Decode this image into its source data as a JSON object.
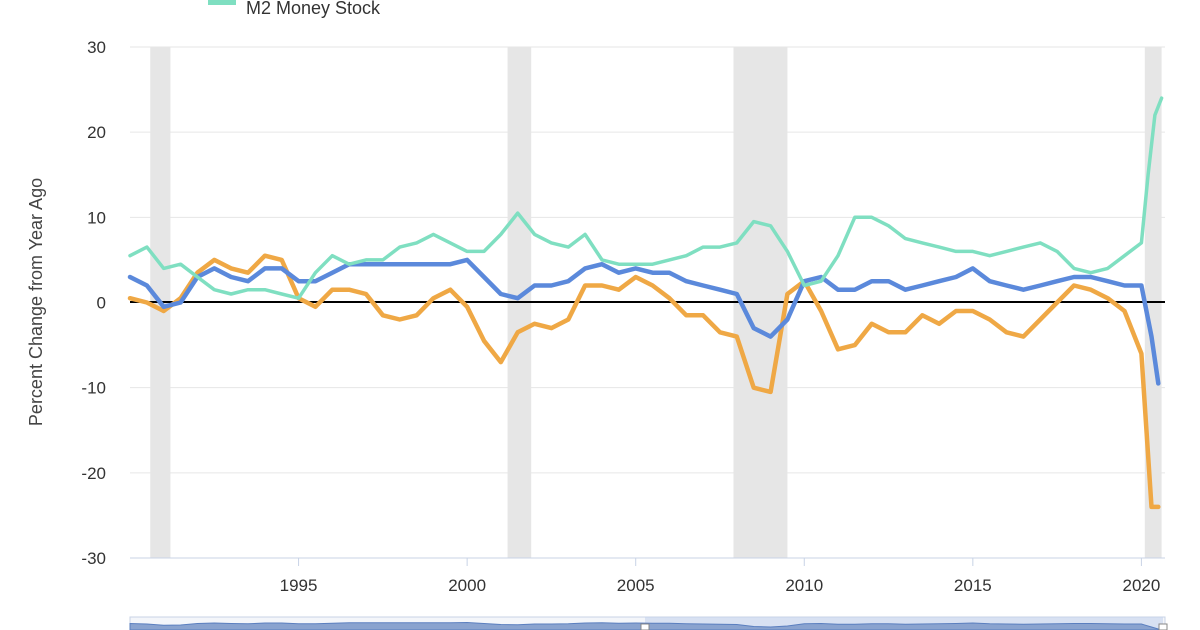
{
  "chart_data": {
    "type": "line",
    "ylabel": "Percent Change from Year Ago",
    "xlim": [
      1990.0,
      2020.7
    ],
    "ylim": [
      -30,
      30
    ],
    "y_ticks": [
      "30",
      "20",
      "10",
      "0",
      "-10",
      "-20",
      "-30"
    ],
    "x_ticks": [
      "1995",
      "2000",
      "2005",
      "2010",
      "2015",
      "2020"
    ],
    "grid": "horizontal",
    "zero_line": true,
    "legend": [
      {
        "name": "M2 Money Stock",
        "color": "#7fdfc1"
      }
    ],
    "recessions": [
      [
        1990.6,
        1991.2
      ],
      [
        2001.2,
        2001.9
      ],
      [
        2007.9,
        2009.5
      ],
      [
        2020.1,
        2020.6
      ]
    ],
    "series": [
      {
        "name": "",
        "color": "#efa845",
        "x": [
          1990.0,
          1990.5,
          1991.0,
          1991.5,
          1992.0,
          1992.5,
          1993.0,
          1993.5,
          1994.0,
          1994.5,
          1995.0,
          1995.5,
          1996.0,
          1996.5,
          1997.0,
          1997.5,
          1998.0,
          1998.5,
          1999.0,
          1999.5,
          2000.0,
          2000.5,
          2001.0,
          2001.5,
          2002.0,
          2002.5,
          2003.0,
          2003.5,
          2004.0,
          2004.5,
          2005.0,
          2005.5,
          2006.0,
          2006.5,
          2007.0,
          2007.5,
          2008.0,
          2008.5,
          2009.0,
          2009.5,
          2010.0,
          2010.5,
          2011.0,
          2011.5,
          2012.0,
          2012.5,
          2013.0,
          2013.5,
          2014.0,
          2014.5,
          2015.0,
          2015.5,
          2016.0,
          2016.5,
          2017.0,
          2017.5,
          2018.0,
          2018.5,
          2019.0,
          2019.5,
          2020.0,
          2020.3,
          2020.5
        ],
        "values": [
          0.5,
          0.0,
          -1.0,
          0.5,
          3.5,
          5.0,
          4.0,
          3.5,
          5.5,
          5.0,
          0.5,
          -0.5,
          1.5,
          1.5,
          1.0,
          -1.5,
          -2.0,
          -1.5,
          0.5,
          1.5,
          -0.5,
          -4.5,
          -7.0,
          -3.5,
          -2.5,
          -3.0,
          -2.0,
          2.0,
          2.0,
          1.5,
          3.0,
          2.0,
          0.5,
          -1.5,
          -1.5,
          -3.5,
          -4.0,
          -10.0,
          -10.5,
          1.0,
          2.5,
          -1.0,
          -5.5,
          -5.0,
          -2.5,
          -3.5,
          -3.5,
          -1.5,
          -2.5,
          -1.0,
          -1.0,
          -2.0,
          -3.5,
          -4.0,
          -2.0,
          0.0,
          2.0,
          1.5,
          0.5,
          -1.0,
          -6.0,
          -24.0,
          -24.0
        ]
      },
      {
        "name": "",
        "color": "#5b89db",
        "x": [
          1990.0,
          1990.5,
          1991.0,
          1991.5,
          1992.0,
          1992.5,
          1993.0,
          1993.5,
          1994.0,
          1994.5,
          1995.0,
          1995.5,
          1996.0,
          1996.5,
          1997.0,
          1997.5,
          1998.0,
          1998.5,
          1999.0,
          1999.5,
          2000.0,
          2000.5,
          2001.0,
          2001.5,
          2002.0,
          2002.5,
          2003.0,
          2003.5,
          2004.0,
          2004.5,
          2005.0,
          2005.5,
          2006.0,
          2006.5,
          2007.0,
          2007.5,
          2008.0,
          2008.5,
          2009.0,
          2009.5,
          2010.0,
          2010.5,
          2011.0,
          2011.5,
          2012.0,
          2012.5,
          2013.0,
          2013.5,
          2014.0,
          2014.5,
          2015.0,
          2015.5,
          2016.0,
          2016.5,
          2017.0,
          2017.5,
          2018.0,
          2018.5,
          2019.0,
          2019.5,
          2020.0,
          2020.3,
          2020.5
        ],
        "values": [
          3.0,
          2.0,
          -0.5,
          0.0,
          3.0,
          4.0,
          3.0,
          2.5,
          4.0,
          4.0,
          2.5,
          2.5,
          3.5,
          4.5,
          4.5,
          4.5,
          4.5,
          4.5,
          4.5,
          4.5,
          5.0,
          3.0,
          1.0,
          0.5,
          2.0,
          2.0,
          2.5,
          4.0,
          4.5,
          3.5,
          4.0,
          3.5,
          3.5,
          2.5,
          2.0,
          1.5,
          1.0,
          -3.0,
          -4.0,
          -2.0,
          2.5,
          3.0,
          1.5,
          1.5,
          2.5,
          2.5,
          1.5,
          2.0,
          2.5,
          3.0,
          4.0,
          2.5,
          2.0,
          1.5,
          2.0,
          2.5,
          3.0,
          3.0,
          2.5,
          2.0,
          2.0,
          -4.0,
          -9.5
        ]
      },
      {
        "name": "M2 Money Stock",
        "color": "#7fdfc1",
        "x": [
          1990.0,
          1990.5,
          1991.0,
          1991.5,
          1992.0,
          1992.5,
          1993.0,
          1993.5,
          1994.0,
          1994.5,
          1995.0,
          1995.5,
          1996.0,
          1996.5,
          1997.0,
          1997.5,
          1998.0,
          1998.5,
          1999.0,
          1999.5,
          2000.0,
          2000.5,
          2001.0,
          2001.5,
          2002.0,
          2002.5,
          2003.0,
          2003.5,
          2004.0,
          2004.5,
          2005.0,
          2005.5,
          2006.0,
          2006.5,
          2007.0,
          2007.5,
          2008.0,
          2008.5,
          2009.0,
          2009.5,
          2010.0,
          2010.5,
          2011.0,
          2011.5,
          2012.0,
          2012.5,
          2013.0,
          2013.5,
          2014.0,
          2014.5,
          2015.0,
          2015.5,
          2016.0,
          2016.5,
          2017.0,
          2017.5,
          2018.0,
          2018.5,
          2019.0,
          2019.5,
          2020.0,
          2020.2,
          2020.4,
          2020.6
        ],
        "values": [
          5.5,
          6.5,
          4.0,
          4.5,
          3.0,
          1.5,
          1.0,
          1.5,
          1.5,
          1.0,
          0.5,
          3.5,
          5.5,
          4.5,
          5.0,
          5.0,
          6.5,
          7.0,
          8.0,
          7.0,
          6.0,
          6.0,
          8.0,
          10.5,
          8.0,
          7.0,
          6.5,
          8.0,
          5.0,
          4.5,
          4.5,
          4.5,
          5.0,
          5.5,
          6.5,
          6.5,
          7.0,
          9.5,
          9.0,
          6.0,
          2.0,
          2.5,
          5.5,
          10.0,
          10.0,
          9.0,
          7.5,
          7.0,
          6.5,
          6.0,
          6.0,
          5.5,
          6.0,
          6.5,
          7.0,
          6.0,
          4.0,
          3.5,
          4.0,
          5.5,
          7.0,
          15.0,
          22.0,
          24.0
        ]
      }
    ]
  }
}
